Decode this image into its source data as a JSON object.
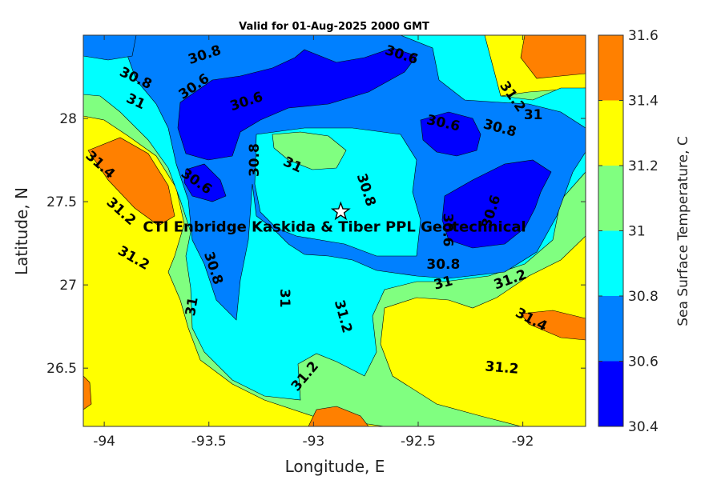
{
  "chart_data": {
    "type": "heatmap",
    "subtype": "filled-contour",
    "title": "Valid for 01-Aug-2025 2000 GMT",
    "xlabel": "Longitude, E",
    "ylabel": "Latitude, N",
    "xlim": [
      -94.1,
      -91.7
    ],
    "ylim": [
      26.15,
      28.5
    ],
    "xticks": [
      -94,
      -93.5,
      -93,
      -92.5,
      -92
    ],
    "yticks": [
      26.5,
      27,
      27.5,
      28
    ],
    "grid": false,
    "colorbar": {
      "label": "Sea Surface Temperature, C",
      "levels": [
        30.4,
        30.6,
        30.8,
        31,
        31.2,
        31.4,
        31.6
      ],
      "colors": [
        "#0000ff",
        "#0080ff",
        "#00ffff",
        "#80ff80",
        "#ffff00",
        "#ff8000"
      ],
      "tick_labels": [
        "30.4",
        "30.6",
        "30.8",
        "31",
        "31.2",
        "31.4",
        "31.6"
      ]
    },
    "contour_labels": [
      {
        "text": "30.8",
        "lon": -93.52,
        "lat": 28.38,
        "rot": -18
      },
      {
        "text": "30.6",
        "lon": -92.58,
        "lat": 28.38,
        "rot": 18
      },
      {
        "text": "30.8",
        "lon": -93.85,
        "lat": 28.24,
        "rot": 25
      },
      {
        "text": "30.6",
        "lon": -93.57,
        "lat": 28.19,
        "rot": -35
      },
      {
        "text": "31",
        "lon": -93.85,
        "lat": 28.1,
        "rot": 25
      },
      {
        "text": "30.6",
        "lon": -93.32,
        "lat": 28.1,
        "rot": -18
      },
      {
        "text": "31.2",
        "lon": -92.05,
        "lat": 28.13,
        "rot": 55
      },
      {
        "text": "30.6",
        "lon": -92.38,
        "lat": 27.97,
        "rot": 12
      },
      {
        "text": "30.8",
        "lon": -92.11,
        "lat": 27.94,
        "rot": 15
      },
      {
        "text": "31",
        "lon": -91.95,
        "lat": 28.02,
        "rot": 0
      },
      {
        "text": "31.4",
        "lon": -94.02,
        "lat": 27.72,
        "rot": 42
      },
      {
        "text": "30.8",
        "lon": -93.28,
        "lat": 27.75,
        "rot": -90
      },
      {
        "text": "31",
        "lon": -93.1,
        "lat": 27.72,
        "rot": 25
      },
      {
        "text": "30.6",
        "lon": -93.56,
        "lat": 27.62,
        "rot": 35
      },
      {
        "text": "30.8",
        "lon": -92.75,
        "lat": 27.57,
        "rot": 72
      },
      {
        "text": "31.2",
        "lon": -93.92,
        "lat": 27.44,
        "rot": 42
      },
      {
        "text": "30.6",
        "lon": -92.15,
        "lat": 27.44,
        "rot": -72
      },
      {
        "text": "30.6",
        "lon": -92.36,
        "lat": 27.33,
        "rot": 90
      },
      {
        "text": "31.2",
        "lon": -93.86,
        "lat": 27.16,
        "rot": 30
      },
      {
        "text": "30.8",
        "lon": -93.48,
        "lat": 27.1,
        "rot": 72
      },
      {
        "text": "30.8",
        "lon": -92.38,
        "lat": 27.12,
        "rot": 0
      },
      {
        "text": "31",
        "lon": -92.38,
        "lat": 27.01,
        "rot": -15
      },
      {
        "text": "31.2",
        "lon": -92.06,
        "lat": 27.03,
        "rot": -20
      },
      {
        "text": "31",
        "lon": -93.14,
        "lat": 26.92,
        "rot": 90
      },
      {
        "text": "31",
        "lon": -93.58,
        "lat": 26.87,
        "rot": -80
      },
      {
        "text": "31.2",
        "lon": -92.86,
        "lat": 26.81,
        "rot": 75
      },
      {
        "text": "31.4",
        "lon": -91.96,
        "lat": 26.79,
        "rot": 28
      },
      {
        "text": "31.2",
        "lon": -92.1,
        "lat": 26.5,
        "rot": 5
      },
      {
        "text": "31.2",
        "lon": -93.04,
        "lat": 26.45,
        "rot": -50
      }
    ],
    "annotations": [
      {
        "text": "CTI Enbridge  Kaskida & Tiber PPL Geotechnical",
        "lon": -92.9,
        "lat": 27.35
      }
    ],
    "marker": {
      "shape": "star",
      "lon": -92.87,
      "lat": 27.44
    }
  }
}
